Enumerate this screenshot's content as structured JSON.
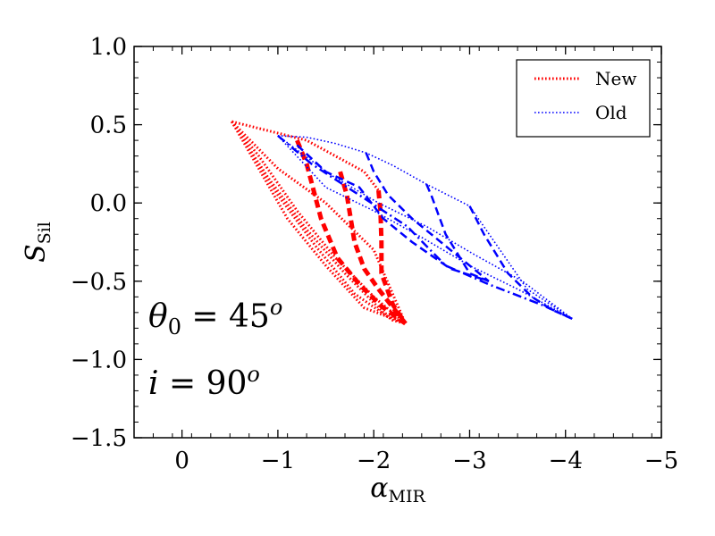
{
  "chart_data": {
    "type": "line",
    "xlabel": "α",
    "xlabel_sub": "MIR",
    "ylabel": "S",
    "ylabel_sub": "Sil",
    "xlim": [
      0.5,
      -5
    ],
    "ylim": [
      -1.5,
      1.0
    ],
    "xticks": [
      0,
      -1,
      -2,
      -3,
      -4,
      -5
    ],
    "xtick_labels": [
      "0",
      "−1",
      "−2",
      "−3",
      "−4",
      "−5"
    ],
    "yticks": [
      1.0,
      0.5,
      0.0,
      -0.5,
      -1.0,
      -1.5
    ],
    "ytick_labels": [
      "1.0",
      "0.5",
      "0.0",
      "−0.5",
      "−1.0",
      "−1.5"
    ],
    "legend": {
      "position": "top-right",
      "entries": [
        {
          "label": "New",
          "color": "#ff0000",
          "style": "dotted"
        },
        {
          "label": "Old",
          "color": "#0000ff",
          "style": "dotted"
        }
      ]
    },
    "annotations": [
      {
        "symbol": "θ",
        "sub": "0",
        "rel": " = 45",
        "sup": "o"
      },
      {
        "symbol": "i",
        "rel": " = 90",
        "sup": "o"
      }
    ],
    "series": [
      {
        "name": "New",
        "style": "dotted",
        "color": "#ff0000",
        "width": 3,
        "points": [
          [
            -0.52,
            0.52
          ],
          [
            -1.3,
            0.4
          ],
          [
            -1.9,
            0.2
          ],
          [
            -2.05,
            0.08
          ]
        ]
      },
      {
        "name": "New",
        "style": "dotted",
        "color": "#ff0000",
        "width": 3,
        "points": [
          [
            -0.52,
            0.52
          ],
          [
            -1.0,
            0.22
          ],
          [
            -1.5,
            0.0
          ],
          [
            -2.0,
            -0.3
          ],
          [
            -2.33,
            -0.77
          ]
        ]
      },
      {
        "name": "New",
        "style": "dotted",
        "color": "#ff0000",
        "width": 3,
        "points": [
          [
            -0.52,
            0.52
          ],
          [
            -0.8,
            0.3
          ],
          [
            -1.2,
            -0.05
          ],
          [
            -1.6,
            -0.35
          ],
          [
            -2.0,
            -0.6
          ],
          [
            -2.33,
            -0.77
          ]
        ]
      },
      {
        "name": "New",
        "style": "dotted",
        "color": "#ff0000",
        "width": 3,
        "points": [
          [
            -0.52,
            0.52
          ],
          [
            -0.9,
            0.16
          ],
          [
            -1.3,
            -0.17
          ],
          [
            -1.7,
            -0.45
          ],
          [
            -2.1,
            -0.7
          ],
          [
            -2.33,
            -0.77
          ]
        ]
      },
      {
        "name": "New",
        "style": "dotted",
        "color": "#ff0000",
        "width": 3,
        "points": [
          [
            -0.52,
            0.52
          ],
          [
            -1.0,
            0.05
          ],
          [
            -1.4,
            -0.28
          ],
          [
            -1.8,
            -0.58
          ],
          [
            -2.2,
            -0.75
          ],
          [
            -2.33,
            -0.77
          ]
        ]
      },
      {
        "name": "New",
        "style": "dotted",
        "color": "#ff0000",
        "width": 3,
        "points": [
          [
            -0.52,
            0.52
          ],
          [
            -1.1,
            -0.1
          ],
          [
            -1.5,
            -0.4
          ],
          [
            -1.9,
            -0.67
          ],
          [
            -2.33,
            -0.77
          ]
        ]
      },
      {
        "name": "New",
        "style": "dashed",
        "color": "#ff0000",
        "width": 5,
        "points": [
          [
            -1.2,
            0.4
          ],
          [
            -1.3,
            0.25
          ],
          [
            -1.45,
            -0.1
          ],
          [
            -1.62,
            -0.35
          ],
          [
            -1.85,
            -0.52
          ],
          [
            -2.08,
            -0.66
          ],
          [
            -2.33,
            -0.77
          ]
        ]
      },
      {
        "name": "New",
        "style": "dashed",
        "color": "#ff0000",
        "width": 5,
        "points": [
          [
            -1.65,
            0.2
          ],
          [
            -1.72,
            0.05
          ],
          [
            -1.8,
            -0.25
          ],
          [
            -1.9,
            -0.42
          ],
          [
            -2.05,
            -0.55
          ],
          [
            -2.33,
            -0.77
          ]
        ]
      },
      {
        "name": "New",
        "style": "dashed",
        "color": "#ff0000",
        "width": 5,
        "points": [
          [
            -2.05,
            0.08
          ],
          [
            -2.07,
            -0.05
          ],
          [
            -2.08,
            -0.25
          ],
          [
            -2.08,
            -0.45
          ],
          [
            -2.2,
            -0.65
          ],
          [
            -2.33,
            -0.77
          ]
        ]
      },
      {
        "name": "Old",
        "style": "dotted",
        "color": "#0000ff",
        "width": 1.6,
        "points": [
          [
            -1.0,
            0.43
          ],
          [
            -1.3,
            0.42
          ],
          [
            -1.6,
            0.38
          ],
          [
            -1.92,
            0.32
          ],
          [
            -2.2,
            0.24
          ],
          [
            -2.55,
            0.12
          ],
          [
            -3.0,
            -0.02
          ],
          [
            -3.6,
            -0.55
          ],
          [
            -4.07,
            -0.74
          ]
        ]
      },
      {
        "name": "Old",
        "style": "dotted",
        "color": "#0000ff",
        "width": 1.6,
        "points": [
          [
            -1.0,
            0.43
          ],
          [
            -1.55,
            0.18
          ],
          [
            -2.05,
            0.0
          ],
          [
            -2.55,
            -0.15
          ],
          [
            -3.05,
            -0.33
          ],
          [
            -3.55,
            -0.5
          ],
          [
            -4.07,
            -0.74
          ]
        ]
      },
      {
        "name": "Old",
        "style": "dotted",
        "color": "#0000ff",
        "width": 1.6,
        "points": [
          [
            -1.0,
            0.43
          ],
          [
            -1.5,
            0.1
          ],
          [
            -2.0,
            -0.05
          ],
          [
            -2.5,
            -0.22
          ],
          [
            -3.0,
            -0.4
          ],
          [
            -3.5,
            -0.55
          ],
          [
            -4.07,
            -0.74
          ]
        ]
      },
      {
        "name": "Old",
        "style": "dashdot",
        "color": "#0000ff",
        "width": 2.5,
        "points": [
          [
            -1.0,
            0.43
          ],
          [
            -1.35,
            0.25
          ],
          [
            -1.8,
            0.07
          ],
          [
            -2.35,
            -0.15
          ],
          [
            -2.75,
            -0.4
          ],
          [
            -3.2,
            -0.52
          ],
          [
            -3.75,
            -0.65
          ],
          [
            -4.07,
            -0.74
          ]
        ]
      },
      {
        "name": "Old",
        "style": "dashed",
        "color": "#0000ff",
        "width": 2.5,
        "points": [
          [
            -1.2,
            0.37
          ],
          [
            -1.5,
            0.2
          ],
          [
            -1.85,
            0.1
          ],
          [
            -2.1,
            -0.1
          ],
          [
            -2.4,
            -0.25
          ],
          [
            -2.8,
            -0.42
          ],
          [
            -3.2,
            -0.5
          ]
        ]
      },
      {
        "name": "Old",
        "style": "dashed",
        "color": "#0000ff",
        "width": 2.5,
        "points": [
          [
            -1.92,
            0.32
          ],
          [
            -2.0,
            0.2
          ],
          [
            -2.15,
            0.05
          ],
          [
            -2.4,
            -0.1
          ],
          [
            -2.8,
            -0.3
          ],
          [
            -3.1,
            -0.45
          ],
          [
            -3.2,
            -0.5
          ]
        ]
      },
      {
        "name": "Old",
        "style": "dashed",
        "color": "#0000ff",
        "width": 2.5,
        "points": [
          [
            -2.55,
            0.12
          ],
          [
            -2.6,
            0.05
          ],
          [
            -2.75,
            -0.2
          ],
          [
            -3.0,
            -0.45
          ],
          [
            -3.2,
            -0.5
          ]
        ]
      },
      {
        "name": "Old",
        "style": "dashed",
        "color": "#0000ff",
        "width": 2.5,
        "points": [
          [
            -3.0,
            -0.02
          ],
          [
            -3.15,
            -0.2
          ],
          [
            -3.4,
            -0.45
          ],
          [
            -3.65,
            -0.6
          ],
          [
            -3.85,
            -0.68
          ],
          [
            -4.07,
            -0.74
          ]
        ]
      }
    ]
  }
}
